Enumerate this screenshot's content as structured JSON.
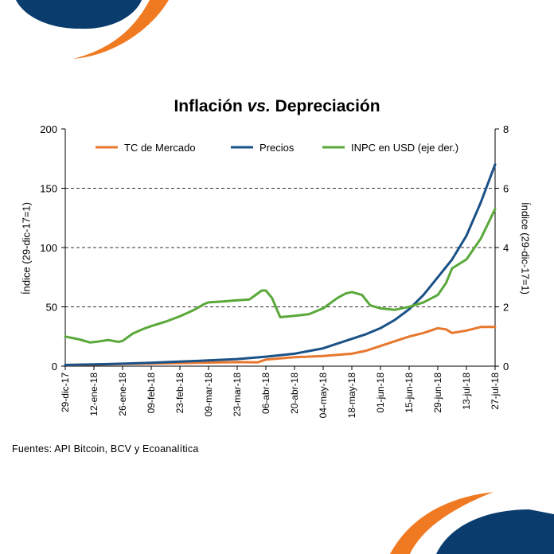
{
  "chart_data": {
    "type": "line",
    "title_main": "Inflación",
    "title_vs": "vs.",
    "title_rest": "Depreciación",
    "ylabel_left": "Índice (29-dic-17=1)",
    "ylabel_right": "Índice (29-dic-17=1)",
    "ylim_left": [
      0,
      200
    ],
    "ylim_right": [
      0,
      8
    ],
    "yticks_left": [
      0,
      50,
      100,
      150,
      200
    ],
    "yticks_right": [
      0,
      2,
      4,
      6,
      8
    ],
    "grid": "horizontal dashed",
    "legend_position": "top",
    "x_ticks": [
      "29-dic-17",
      "12-ene-18",
      "26-ene-18",
      "09-feb-18",
      "23-feb-18",
      "09-mar-18",
      "23-mar-18",
      "06-abr-18",
      "20-abr-18",
      "04-may-18",
      "18-may-18",
      "01-jun-18",
      "15-jun-18",
      "29-jun-18",
      "13-jul-18",
      "27-jul-18"
    ],
    "x_days": [
      0,
      14,
      28,
      42,
      56,
      70,
      84,
      98,
      112,
      126,
      140,
      154,
      168,
      182,
      196,
      210
    ],
    "series": [
      {
        "name": "TC de Mercado",
        "axis": "left",
        "color": "#e8772e",
        "x": [
          0,
          14,
          28,
          42,
          56,
          70,
          84,
          94,
          98,
          105,
          112,
          126,
          140,
          147,
          154,
          161,
          168,
          175,
          182,
          186,
          189,
          196,
          203,
          210
        ],
        "y": [
          1,
          1.3,
          1.8,
          2.2,
          2.6,
          3.0,
          3.4,
          3.2,
          5.5,
          6.5,
          7.5,
          8.5,
          10.5,
          13,
          17,
          21,
          25,
          28,
          32,
          31,
          28,
          30,
          33,
          33
        ]
      },
      {
        "name": "Precios",
        "axis": "left",
        "color": "#1a5187",
        "x": [
          0,
          14,
          28,
          42,
          56,
          70,
          84,
          98,
          112,
          126,
          140,
          147,
          154,
          161,
          168,
          175,
          182,
          189,
          196,
          203,
          210
        ],
        "y": [
          1,
          1.5,
          2.1,
          2.9,
          3.8,
          4.8,
          6.0,
          8.0,
          10.5,
          15,
          23,
          27,
          32,
          39,
          48,
          60,
          75,
          90,
          110,
          138,
          170
        ]
      },
      {
        "name": "INPC en USD (eje der.)",
        "axis": "right",
        "color": "#5aa83a",
        "x": [
          0,
          7,
          12,
          16,
          21,
          26,
          28,
          33,
          38,
          42,
          49,
          56,
          63,
          68,
          70,
          77,
          84,
          90,
          93,
          96,
          98,
          101,
          105,
          112,
          119,
          126,
          133,
          137,
          140,
          145,
          149,
          154,
          161,
          168,
          175,
          182,
          186,
          189,
          196,
          203,
          210
        ],
        "y": [
          1.0,
          0.9,
          0.8,
          0.83,
          0.88,
          0.82,
          0.85,
          1.1,
          1.25,
          1.35,
          1.5,
          1.68,
          1.9,
          2.1,
          2.15,
          2.18,
          2.22,
          2.25,
          2.4,
          2.55,
          2.55,
          2.3,
          1.65,
          1.7,
          1.75,
          1.95,
          2.3,
          2.45,
          2.5,
          2.4,
          2.05,
          1.95,
          1.9,
          2.0,
          2.15,
          2.4,
          2.8,
          3.3,
          3.6,
          4.3,
          5.3
        ]
      }
    ]
  },
  "footer": {
    "source": "Fuentes: API Bitcoin, BCV y Ecoanalítica"
  },
  "decor": {
    "navy": "#0b3c6e",
    "orange": "#f07a22"
  }
}
